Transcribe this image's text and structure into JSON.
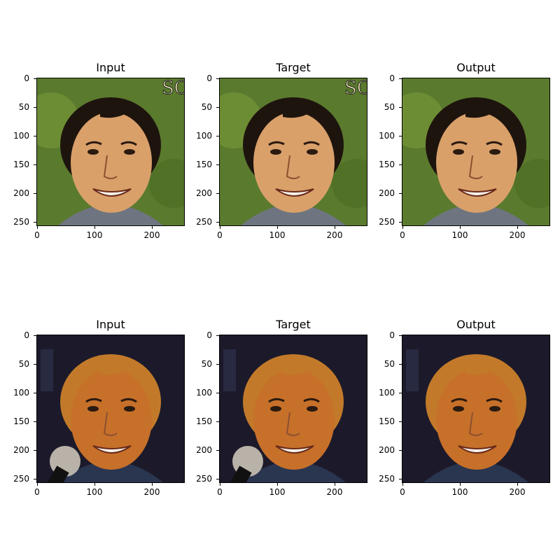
{
  "panels": [
    {
      "title": "Input",
      "image": "face-photo"
    },
    {
      "title": "Target",
      "image": "face-photo"
    },
    {
      "title": "Output",
      "image": "face-photo"
    },
    {
      "title": "Input",
      "image": "face-photo"
    },
    {
      "title": "Target",
      "image": "face-photo"
    },
    {
      "title": "Output",
      "image": "face-photo"
    }
  ],
  "yticks": [
    "0",
    "50",
    "100",
    "150",
    "200",
    "250"
  ],
  "xticks": [
    "0",
    "100",
    "200"
  ],
  "colors": {
    "row1_background": "#5a7a2e",
    "row1_hair": "#1e140e",
    "row1_skin": "#d9a06a",
    "row2_background": "#1c1a2a",
    "row2_hair": "#c27a2a",
    "row2_skin": "#c7702a"
  }
}
